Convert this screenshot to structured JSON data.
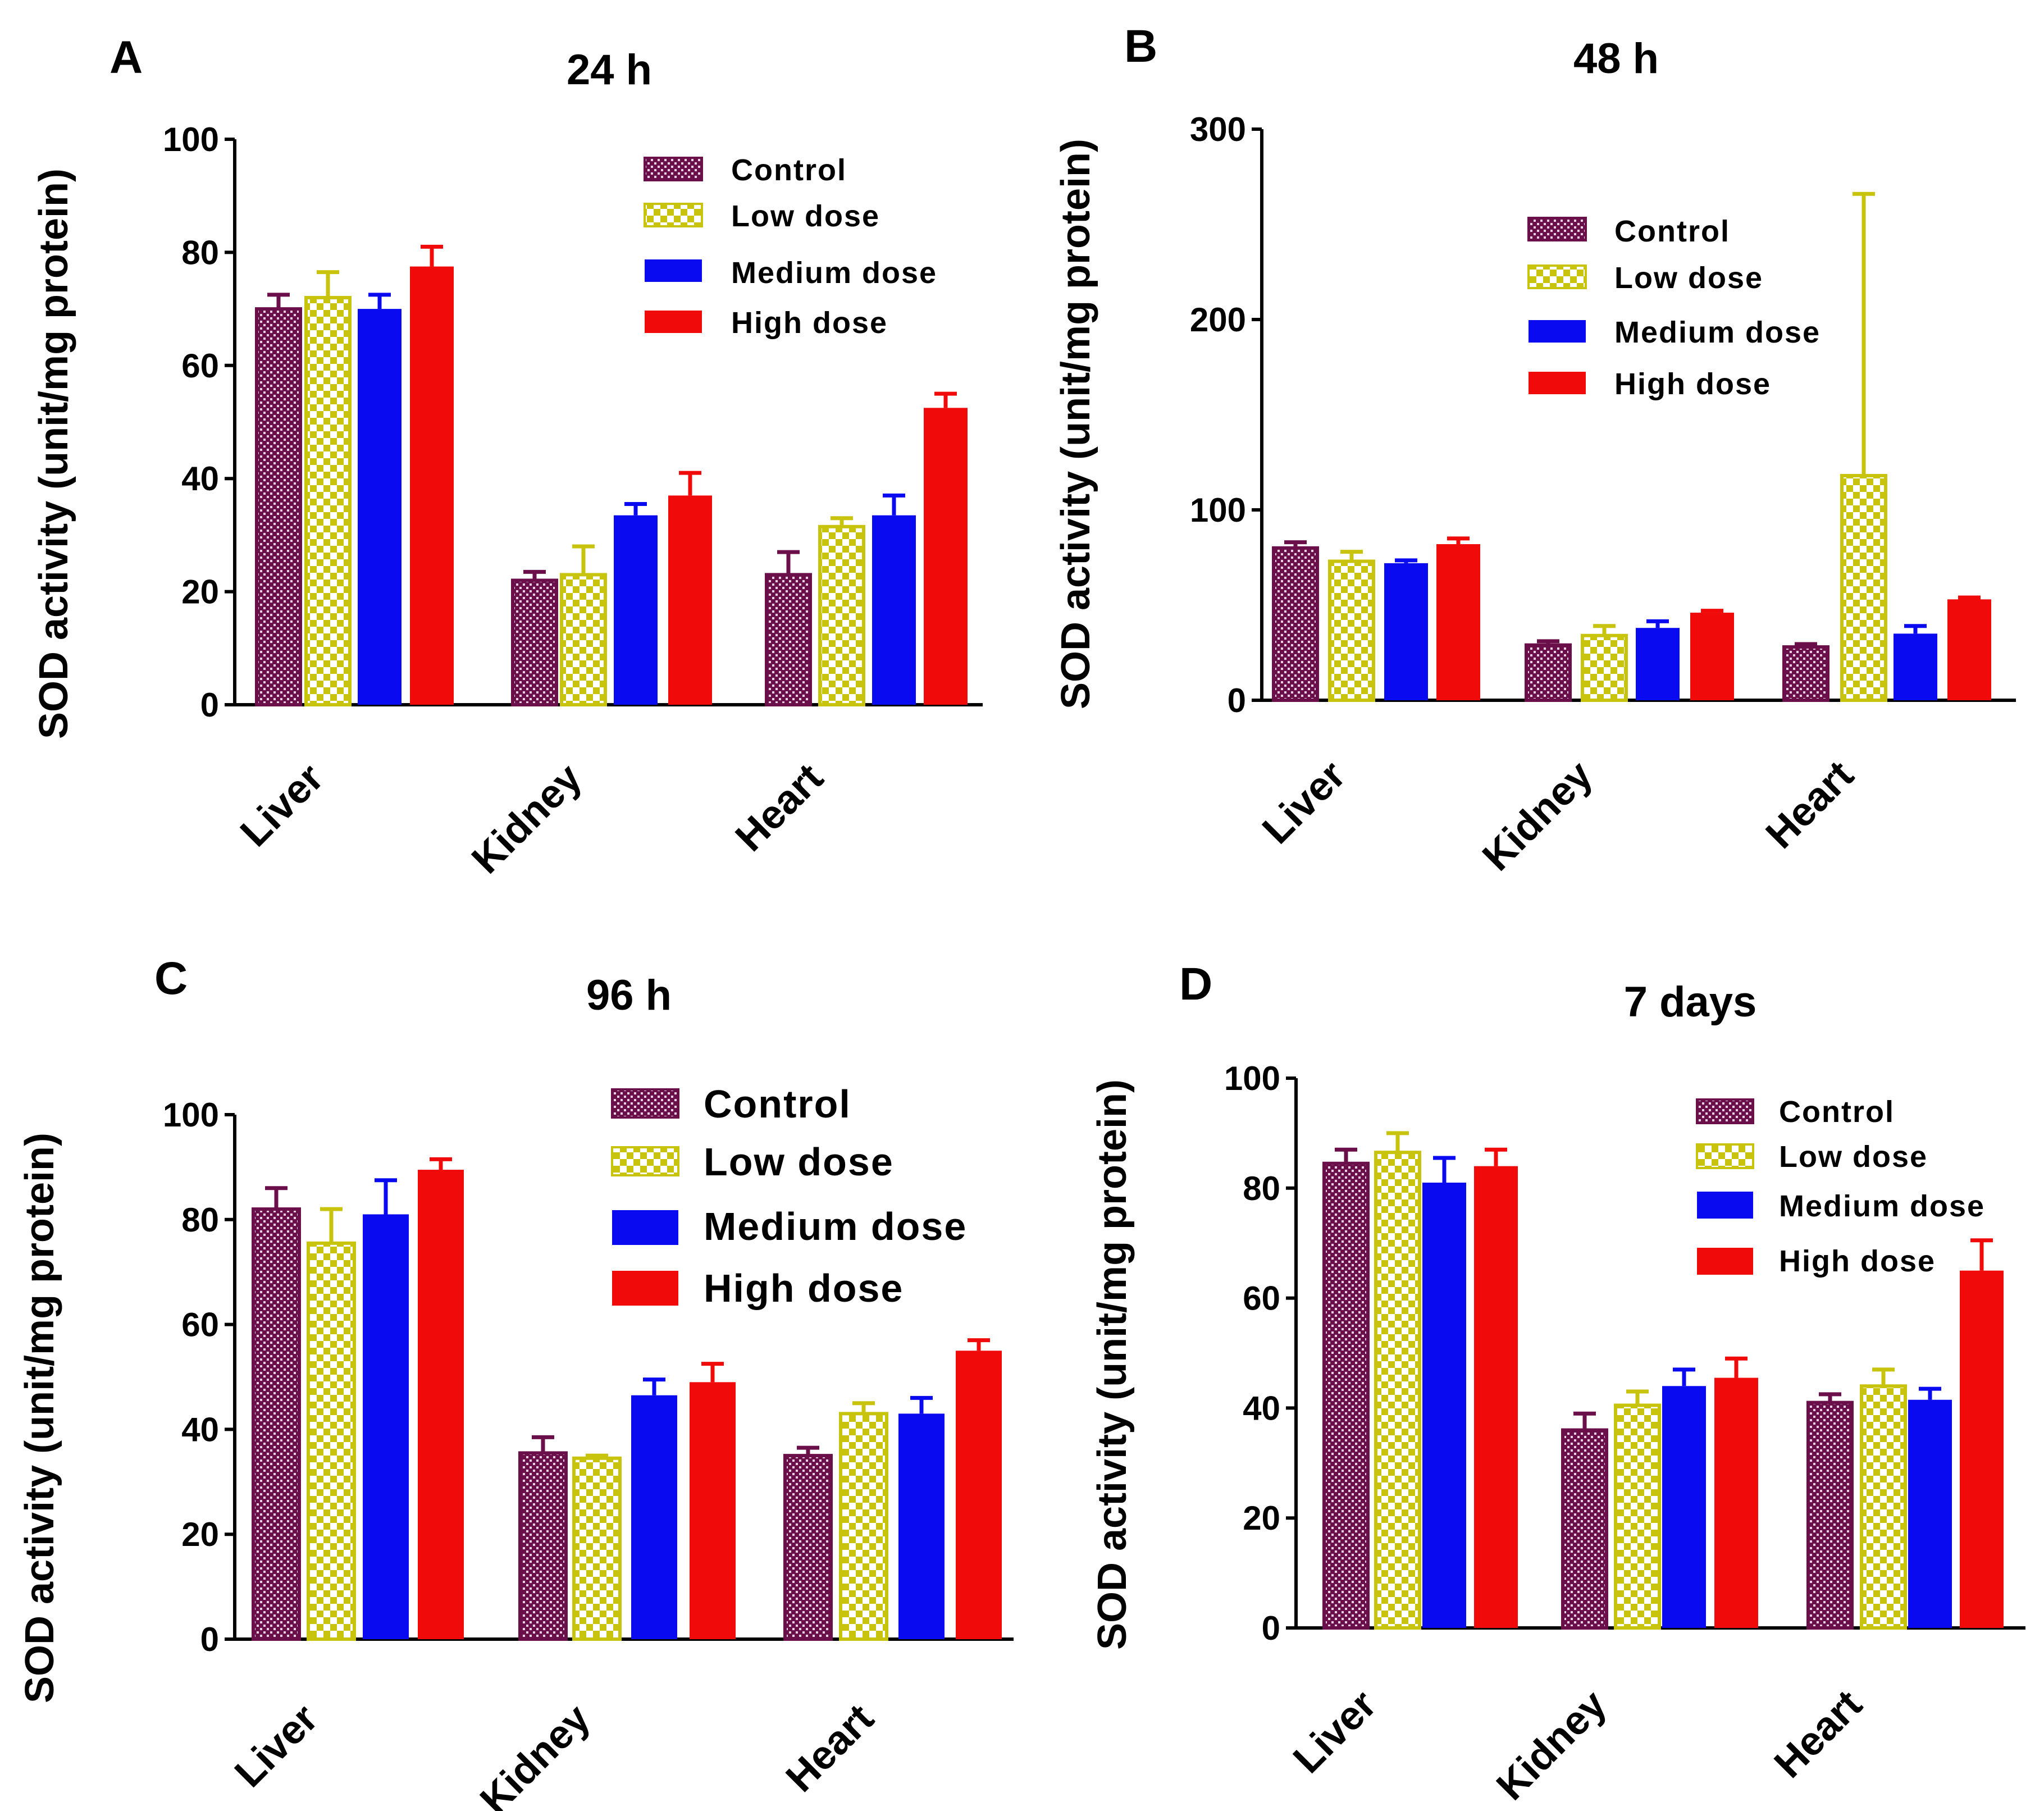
{
  "chart_data": [
    {
      "type": "bar",
      "panel": "A",
      "title": "24 h",
      "ylabel": "SOD activity (unit/mg protein)",
      "xlabel": "",
      "ylim": [
        0,
        100
      ],
      "yticks": [
        0,
        20,
        40,
        60,
        80,
        100
      ],
      "categories": [
        "Liver",
        "Kidney",
        "Heart"
      ],
      "series": [
        {
          "name": "Control",
          "values": [
            70,
            22,
            23
          ],
          "errors": [
            2.5,
            1.5,
            4
          ]
        },
        {
          "name": "Low dose",
          "values": [
            72,
            23,
            31.5
          ],
          "errors": [
            4.5,
            5,
            1.5
          ]
        },
        {
          "name": "Medium dose",
          "values": [
            70,
            33.5,
            33.5
          ],
          "errors": [
            2.5,
            2,
            3.5
          ]
        },
        {
          "name": "High dose",
          "values": [
            77.5,
            37,
            52.5
          ],
          "errors": [
            3.5,
            4,
            2.5
          ]
        }
      ],
      "legend_position": "top-right"
    },
    {
      "type": "bar",
      "panel": "B",
      "title": "48 h",
      "ylabel": "SOD activity (unit/mg protein)",
      "xlabel": "",
      "ylim": [
        0,
        300
      ],
      "yticks": [
        0,
        100,
        200,
        300
      ],
      "categories": [
        "Liver",
        "Kidney",
        "Heart"
      ],
      "series": [
        {
          "name": "Control",
          "values": [
            80,
            29,
            28
          ],
          "errors": [
            3,
            2,
            1.5
          ]
        },
        {
          "name": "Low dose",
          "values": [
            73,
            34,
            118
          ],
          "errors": [
            5,
            5,
            148
          ]
        },
        {
          "name": "Medium dose",
          "values": [
            72,
            38,
            35
          ],
          "errors": [
            1.5,
            3.5,
            4
          ]
        },
        {
          "name": "High dose",
          "values": [
            82,
            46,
            53
          ],
          "errors": [
            3,
            1,
            1
          ]
        }
      ],
      "legend_position": "top-right"
    },
    {
      "type": "bar",
      "panel": "C",
      "title": "96 h",
      "ylabel": "SOD activity (unit/mg protein)",
      "xlabel": "",
      "ylim": [
        0,
        100
      ],
      "yticks": [
        0,
        20,
        40,
        60,
        80,
        100
      ],
      "categories": [
        "Liver",
        "Kidney",
        "Heart"
      ],
      "series": [
        {
          "name": "Control",
          "values": [
            82,
            35.5,
            35
          ],
          "errors": [
            4,
            3,
            1.5
          ]
        },
        {
          "name": "Low dose",
          "values": [
            75.5,
            34.5,
            43
          ],
          "errors": [
            6.5,
            0.5,
            2
          ]
        },
        {
          "name": "Medium dose",
          "values": [
            81,
            46.5,
            43
          ],
          "errors": [
            6.5,
            3,
            3
          ]
        },
        {
          "name": "High dose",
          "values": [
            89.5,
            49,
            55
          ],
          "errors": [
            2,
            3.5,
            2
          ]
        }
      ],
      "legend_position": "top-right"
    },
    {
      "type": "bar",
      "panel": "D",
      "title": "7 days",
      "ylabel": "SOD activity (unit/mg protein)",
      "xlabel": "",
      "ylim": [
        0,
        100
      ],
      "yticks": [
        0,
        20,
        40,
        60,
        80,
        100
      ],
      "categories": [
        "Liver",
        "Kidney",
        "Heart"
      ],
      "series": [
        {
          "name": "Control",
          "values": [
            84.5,
            36,
            41
          ],
          "errors": [
            2.5,
            3,
            1.5
          ]
        },
        {
          "name": "Low dose",
          "values": [
            86.5,
            40.5,
            44
          ],
          "errors": [
            3.5,
            2.5,
            3
          ]
        },
        {
          "name": "Medium dose",
          "values": [
            81,
            44,
            41.5
          ],
          "errors": [
            4.5,
            3,
            2
          ]
        },
        {
          "name": "High dose",
          "values": [
            84,
            45.5,
            65
          ],
          "errors": [
            3,
            3.5,
            5.5
          ]
        }
      ],
      "legend_position": "top-right"
    }
  ],
  "series_colors": [
    "#6b0f4a",
    "#c8c40e",
    "#0a0af0",
    "#f00a0a"
  ]
}
